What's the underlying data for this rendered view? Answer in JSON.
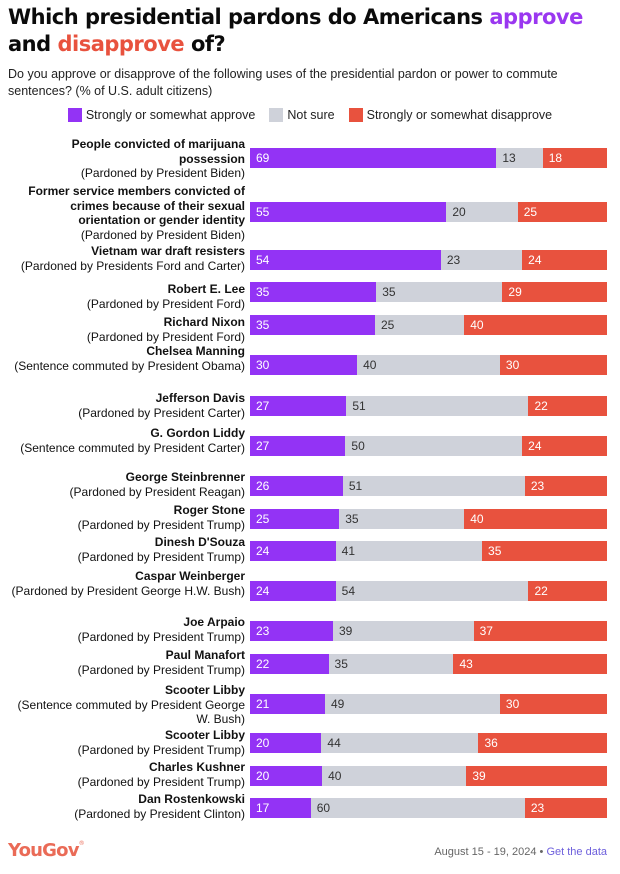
{
  "title": {
    "prefix": "Which presidential pardons do Americans ",
    "approve_word": "approve",
    "middle": " and ",
    "disapprove_word": "disapprove",
    "suffix": " of?"
  },
  "subtitle": "Do you approve or disapprove of the following uses of the presidential pardon or power to commute sentences? (% of U.S. adult citizens)",
  "colors": {
    "approve": "#9333f5",
    "not_sure": "#cfd2da",
    "disapprove": "#e8523e"
  },
  "legend": [
    {
      "label": "Strongly or somewhat approve",
      "color": "#9333f5"
    },
    {
      "label": "Not sure",
      "color": "#cfd2da"
    },
    {
      "label": "Strongly or somewhat disapprove",
      "color": "#e8523e"
    }
  ],
  "footer": {
    "logo": "YouGov",
    "dates": "August 15 - 19, 2024",
    "separator": " • ",
    "link": "Get the data"
  },
  "chart_data": {
    "type": "bar",
    "orientation": "horizontal-stacked-100",
    "title": "Which presidential pardons do Americans approve and disapprove of?",
    "subtitle": "Do you approve or disapprove of the following uses of the presidential pardon or power to commute sentences? (% of U.S. adult citizens)",
    "legend_position": "top-center",
    "grid": false,
    "series_names": [
      "Strongly or somewhat approve",
      "Not sure",
      "Strongly or somewhat disapprove"
    ],
    "categories": [
      {
        "name": "People convicted of marijuana possession",
        "note": "(Pardoned by President Biden)",
        "approve": 69,
        "not_sure": 13,
        "disapprove": 18
      },
      {
        "name": "Former service members convicted of crimes because of their sexual orientation or gender identity",
        "note": "(Pardoned by President Biden)",
        "approve": 55,
        "not_sure": 20,
        "disapprove": 25
      },
      {
        "name": "Vietnam war draft resisters",
        "note": "(Pardoned by Presidents Ford and Carter)",
        "approve": 54,
        "not_sure": 23,
        "disapprove": 24
      },
      {
        "name": "Robert E. Lee",
        "note": "(Pardoned by President Ford)",
        "approve": 35,
        "not_sure": 35,
        "disapprove": 29
      },
      {
        "name": "Richard Nixon",
        "note": "(Pardoned by President Ford)",
        "approve": 35,
        "not_sure": 25,
        "disapprove": 40
      },
      {
        "name": "Chelsea Manning",
        "note": "(Sentence commuted by President Obama)",
        "approve": 30,
        "not_sure": 40,
        "disapprove": 30
      },
      {
        "name": "Jefferson Davis",
        "note": "(Pardoned by President Carter)",
        "approve": 27,
        "not_sure": 51,
        "disapprove": 22
      },
      {
        "name": "G. Gordon Liddy",
        "note": "(Sentence commuted by President Carter)",
        "approve": 27,
        "not_sure": 50,
        "disapprove": 24
      },
      {
        "name": "George Steinbrenner",
        "note": "(Pardoned by President Reagan)",
        "approve": 26,
        "not_sure": 51,
        "disapprove": 23
      },
      {
        "name": "Roger Stone",
        "note": "(Pardoned by President Trump)",
        "approve": 25,
        "not_sure": 35,
        "disapprove": 40
      },
      {
        "name": "Dinesh D'Souza",
        "note": "(Pardoned by President Trump)",
        "approve": 24,
        "not_sure": 41,
        "disapprove": 35
      },
      {
        "name": "Caspar Weinberger",
        "note": "(Pardoned by President George H.W. Bush)",
        "approve": 24,
        "not_sure": 54,
        "disapprove": 22
      },
      {
        "name": "Joe Arpaio",
        "note": "(Pardoned by President Trump)",
        "approve": 23,
        "not_sure": 39,
        "disapprove": 37
      },
      {
        "name": "Paul Manafort",
        "note": "(Pardoned by President Trump)",
        "approve": 22,
        "not_sure": 35,
        "disapprove": 43
      },
      {
        "name": "Scooter Libby",
        "note": "(Sentence commuted by President George W. Bush)",
        "approve": 21,
        "not_sure": 49,
        "disapprove": 30
      },
      {
        "name": "Scooter Libby",
        "note": "(Pardoned by President Trump)",
        "approve": 20,
        "not_sure": 44,
        "disapprove": 36
      },
      {
        "name": "Charles Kushner",
        "note": "(Pardoned by President Trump)",
        "approve": 20,
        "not_sure": 40,
        "disapprove": 39
      },
      {
        "name": "Dan Rostenkowski",
        "note": "(Pardoned by President Clinton)",
        "approve": 17,
        "not_sure": 60,
        "disapprove": 23
      }
    ]
  }
}
